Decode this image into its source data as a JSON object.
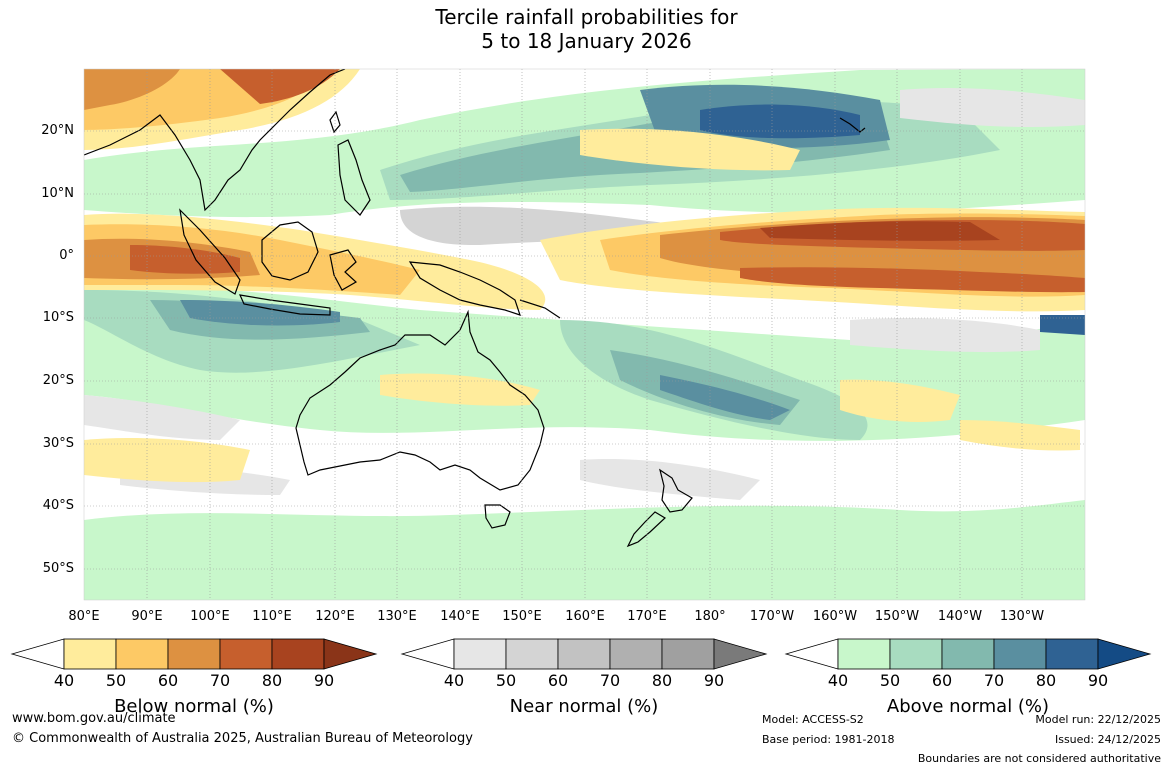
{
  "title": {
    "line1": "Tercile rainfall probabilities for",
    "line2": "5 to 18 January 2026"
  },
  "map": {
    "lat_labels": [
      "20°N",
      "10°N",
      "0°",
      "10°S",
      "20°S",
      "30°S",
      "40°S",
      "50°S"
    ],
    "lon_labels": [
      "80°E",
      "90°E",
      "100°E",
      "110°E",
      "120°E",
      "130°E",
      "140°E",
      "150°E",
      "160°E",
      "170°E",
      "180°",
      "170°W",
      "160°W",
      "150°W",
      "140°W",
      "130°W"
    ]
  },
  "colorbars": {
    "below": {
      "label": "Below normal (%)",
      "ticks": [
        "40",
        "50",
        "60",
        "70",
        "80",
        "90"
      ],
      "colors": [
        "#ffffff",
        "#ffec9c",
        "#fdc965",
        "#dd9141",
        "#c65f2d",
        "#a8431f",
        "#8a3418"
      ]
    },
    "near": {
      "label": "Near normal (%)",
      "ticks": [
        "40",
        "50",
        "60",
        "70",
        "80",
        "90"
      ],
      "colors": [
        "#ffffff",
        "#e6e6e6",
        "#d4d4d4",
        "#c2c2c2",
        "#b0b0b0",
        "#a0a0a0",
        "#7a7a7a"
      ]
    },
    "above": {
      "label": "Above normal (%)",
      "ticks": [
        "40",
        "50",
        "60",
        "70",
        "80",
        "90"
      ],
      "colors": [
        "#ffffff",
        "#c8f7cb",
        "#a8dcc0",
        "#82b9ae",
        "#5a8fa0",
        "#2f6293",
        "#144b85"
      ]
    }
  },
  "footer": {
    "website": "www.bom.gov.au/climate",
    "copyright": "© Commonwealth of Australia 2025, Australian Bureau of Meteorology",
    "model": "Model: ACCESS-S2",
    "base_period": "Base period: 1981-2018",
    "model_run": "Model run: 22/12/2025",
    "issued": "Issued: 24/12/2025",
    "disclaimer": "Boundaries are not considered authoritative"
  }
}
